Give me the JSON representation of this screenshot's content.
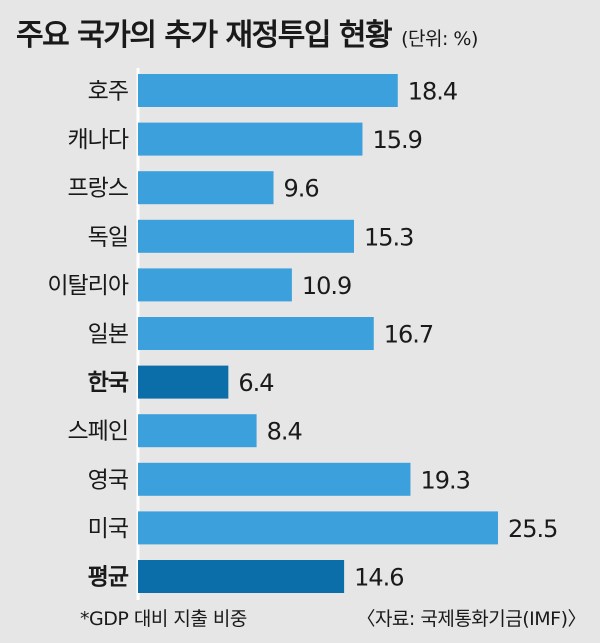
{
  "colors": {
    "bar": "#3ca0dc",
    "highlight_bar": "#0b6ea9",
    "background": "#e6e6e6"
  },
  "chart_data": {
    "type": "bar",
    "orientation": "horizontal",
    "title": "주요 국가의 추가 재정투입 현황",
    "unit": "(단위: %)",
    "categories": [
      "호주",
      "캐나다",
      "프랑스",
      "독일",
      "이탈리아",
      "일본",
      "한국",
      "스페인",
      "영국",
      "미국",
      "평균"
    ],
    "values": [
      18.4,
      15.9,
      9.6,
      15.3,
      10.9,
      16.7,
      6.4,
      8.4,
      19.3,
      25.5,
      14.6
    ],
    "highlighted": [
      "한국",
      "평균"
    ],
    "value_labels": [
      "18.4",
      "15.9",
      "9.6",
      "15.3",
      "10.9",
      "16.7",
      "6.4",
      "8.4",
      "19.3",
      "25.5",
      "14.6"
    ],
    "xlim": [
      0,
      26
    ],
    "grid": false,
    "legend": "none"
  },
  "footer": {
    "note": "*GDP 대비 지출 비중",
    "source": "〈자료: 국제통화기금(IMF)〉"
  }
}
